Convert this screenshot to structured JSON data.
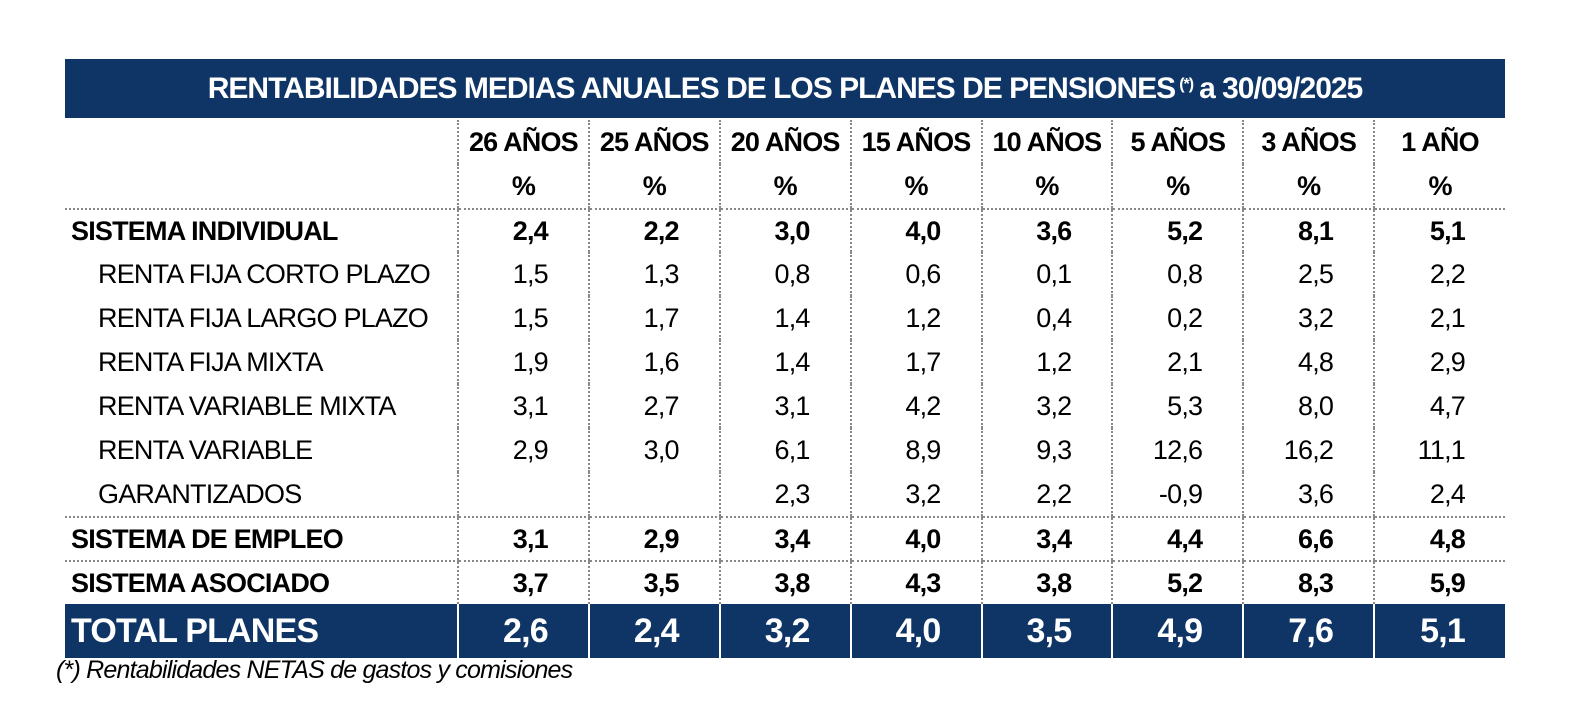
{
  "title": {
    "main": "RENTABILIDADES MEDIAS ANUALES DE LOS PLANES DE PENSIONES",
    "note_mark": "(*)",
    "date": "a 30/09/2025"
  },
  "columns": [
    "26 AÑOS",
    "25 AÑOS",
    "20 AÑOS",
    "15 AÑOS",
    "10 AÑOS",
    "5 AÑOS",
    "3 AÑOS",
    "1 AÑO"
  ],
  "unit": "%",
  "rows": [
    {
      "label": "SISTEMA INDIVIDUAL",
      "values": [
        "2,4",
        "2,2",
        "3,0",
        "4,0",
        "3,6",
        "5,2",
        "8,1",
        "5,1"
      ]
    },
    {
      "label": "RENTA FIJA CORTO PLAZO",
      "values": [
        "1,5",
        "1,3",
        "0,8",
        "0,6",
        "0,1",
        "0,8",
        "2,5",
        "2,2"
      ]
    },
    {
      "label": "RENTA FIJA LARGO PLAZO",
      "values": [
        "1,5",
        "1,7",
        "1,4",
        "1,2",
        "0,4",
        "0,2",
        "3,2",
        "2,1"
      ]
    },
    {
      "label": "RENTA FIJA MIXTA",
      "values": [
        "1,9",
        "1,6",
        "1,4",
        "1,7",
        "1,2",
        "2,1",
        "4,8",
        "2,9"
      ]
    },
    {
      "label": "RENTA VARIABLE MIXTA",
      "values": [
        "3,1",
        "2,7",
        "3,1",
        "4,2",
        "3,2",
        "5,3",
        "8,0",
        "4,7"
      ]
    },
    {
      "label": "RENTA VARIABLE",
      "values": [
        "2,9",
        "3,0",
        "6,1",
        "8,9",
        "9,3",
        "12,6",
        "16,2",
        "11,1"
      ]
    },
    {
      "label": "GARANTIZADOS",
      "values": [
        "",
        "",
        "2,3",
        "3,2",
        "2,2",
        "-0,9",
        "3,6",
        "2,4"
      ]
    },
    {
      "label": "SISTEMA DE EMPLEO",
      "values": [
        "3,1",
        "2,9",
        "3,4",
        "4,0",
        "3,4",
        "4,4",
        "6,6",
        "4,8"
      ]
    },
    {
      "label": "SISTEMA ASOCIADO",
      "values": [
        "3,7",
        "3,5",
        "3,8",
        "4,3",
        "3,8",
        "5,2",
        "8,3",
        "5,9"
      ]
    },
    {
      "label": "TOTAL PLANES",
      "values": [
        "2,6",
        "2,4",
        "3,2",
        "4,0",
        "3,5",
        "4,9",
        "7,6",
        "5,1"
      ]
    }
  ],
  "footnote": "(*) Rentabilidades NETAS de gastos y comisiones",
  "colors": {
    "header_bg": "#0f3566",
    "header_text": "#ffffff"
  }
}
